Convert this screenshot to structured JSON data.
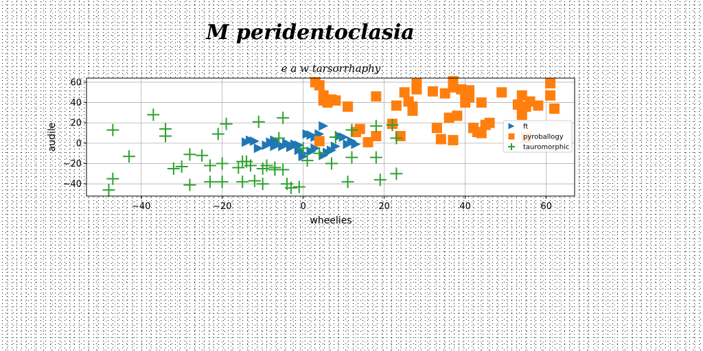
{
  "chart_data": {
    "type": "scatter",
    "suptitle": "M peridentoclasia",
    "title": "e a w tarsorrhaphy",
    "xlabel": "wheelies",
    "ylabel": "audile",
    "xlim": [
      -53.5,
      67
    ],
    "ylim": [
      -52,
      64
    ],
    "xticks": [
      -40,
      -20,
      0,
      20,
      40,
      60
    ],
    "yticks": [
      -40,
      -20,
      0,
      20,
      40,
      60
    ],
    "grid": true,
    "legend_position": "right",
    "series": [
      {
        "name": "ft",
        "marker": "triangle-right",
        "color": "#1f77b4",
        "points": [
          [
            -14,
            1
          ],
          [
            -13,
            3
          ],
          [
            -12,
            2
          ],
          [
            -11,
            -5
          ],
          [
            -8,
            1
          ],
          [
            -7,
            -3
          ],
          [
            -7,
            3
          ],
          [
            -6,
            -1
          ],
          [
            -5,
            -3
          ],
          [
            -4,
            0
          ],
          [
            -2,
            -1
          ],
          [
            -1,
            -7
          ],
          [
            -1,
            -2
          ],
          [
            0,
            -13
          ],
          [
            0,
            -10
          ],
          [
            1,
            9
          ],
          [
            2,
            -8
          ],
          [
            2,
            8
          ],
          [
            3,
            6
          ],
          [
            4,
            4
          ],
          [
            4,
            9
          ],
          [
            5,
            -12
          ],
          [
            5,
            17
          ],
          [
            6,
            -9
          ],
          [
            7,
            -7
          ],
          [
            8,
            -3
          ],
          [
            9,
            7
          ],
          [
            10,
            6
          ],
          [
            11,
            -1
          ],
          [
            12,
            2
          ],
          [
            13,
            -1
          ],
          [
            -9,
            -2
          ],
          [
            -3,
            -4
          ],
          [
            3,
            -5
          ]
        ]
      },
      {
        "name": "pyroballogy",
        "marker": "square",
        "color": "#ff7f0e",
        "points": [
          [
            3,
            60
          ],
          [
            4,
            57
          ],
          [
            4,
            2
          ],
          [
            5,
            47
          ],
          [
            5,
            42
          ],
          [
            6,
            40
          ],
          [
            7,
            43
          ],
          [
            8,
            42
          ],
          [
            11,
            36
          ],
          [
            13,
            11
          ],
          [
            14,
            14
          ],
          [
            16,
            1
          ],
          [
            18,
            46
          ],
          [
            18,
            7
          ],
          [
            22,
            19
          ],
          [
            23,
            37
          ],
          [
            24,
            7
          ],
          [
            25,
            50
          ],
          [
            26,
            41
          ],
          [
            27,
            32
          ],
          [
            27,
            36
          ],
          [
            28,
            53
          ],
          [
            28,
            59
          ],
          [
            32,
            51
          ],
          [
            33,
            15
          ],
          [
            34,
            4
          ],
          [
            35,
            49
          ],
          [
            36,
            25
          ],
          [
            37,
            61
          ],
          [
            37,
            55
          ],
          [
            37,
            3
          ],
          [
            38,
            27
          ],
          [
            39,
            53
          ],
          [
            40,
            48
          ],
          [
            40,
            40
          ],
          [
            41,
            52
          ],
          [
            42,
            15
          ],
          [
            43,
            11
          ],
          [
            44,
            40
          ],
          [
            44,
            10
          ],
          [
            45,
            18
          ],
          [
            49,
            50
          ],
          [
            53,
            38
          ],
          [
            54,
            47
          ],
          [
            54,
            28
          ],
          [
            55,
            5
          ],
          [
            56,
            41
          ],
          [
            58,
            37
          ],
          [
            61,
            59
          ],
          [
            61,
            47
          ],
          [
            62,
            34
          ],
          [
            41,
            45
          ],
          [
            46,
            20
          ],
          [
            55,
            36
          ]
        ]
      },
      {
        "name": "tauromorphic",
        "marker": "plus",
        "color": "#2ca02c",
        "points": [
          [
            -48,
            -46
          ],
          [
            -47,
            -35
          ],
          [
            -47,
            13
          ],
          [
            -43,
            -13
          ],
          [
            -37,
            28
          ],
          [
            -34,
            14
          ],
          [
            -34,
            7
          ],
          [
            -32,
            -25
          ],
          [
            -28,
            -11
          ],
          [
            -28,
            -41
          ],
          [
            -25,
            -12
          ],
          [
            -23,
            -22
          ],
          [
            -23,
            -38
          ],
          [
            -21,
            9
          ],
          [
            -20,
            -20
          ],
          [
            -20,
            -38
          ],
          [
            -19,
            19
          ],
          [
            -16,
            -24
          ],
          [
            -15,
            -18
          ],
          [
            -15,
            -38
          ],
          [
            -14,
            -18
          ],
          [
            -13,
            -22
          ],
          [
            -12,
            -37
          ],
          [
            -11,
            21
          ],
          [
            -10,
            -40
          ],
          [
            -10,
            -25
          ],
          [
            -7,
            -24
          ],
          [
            -7,
            -26
          ],
          [
            -6,
            5
          ],
          [
            -5,
            25
          ],
          [
            -5,
            -26
          ],
          [
            -4,
            -40
          ],
          [
            -3,
            -44
          ],
          [
            -1,
            -43
          ],
          [
            0,
            -5
          ],
          [
            1,
            -17
          ],
          [
            7,
            -20
          ],
          [
            8,
            6
          ],
          [
            11,
            -38
          ],
          [
            12,
            -14
          ],
          [
            12,
            13
          ],
          [
            18,
            17
          ],
          [
            18,
            -14
          ],
          [
            19,
            -36
          ],
          [
            22,
            18
          ],
          [
            23,
            5
          ],
          [
            23,
            -30
          ],
          [
            -30,
            -23
          ],
          [
            -9,
            -22
          ],
          [
            4,
            -10
          ]
        ]
      }
    ]
  }
}
